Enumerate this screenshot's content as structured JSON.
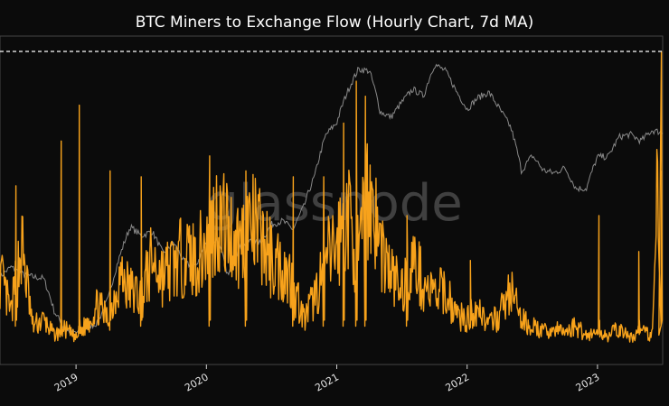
{
  "chart_data": {
    "type": "line",
    "title": "BTC Miners to Exchange Flow (Hourly Chart, 7d MA)",
    "watermark": "glassnode",
    "xlabel": "",
    "ylabel": "",
    "x_ticks": [
      "2019",
      "2020",
      "2021",
      "2022",
      "2023"
    ],
    "x_range": [
      "2018-06",
      "2023-07"
    ],
    "grid": false,
    "colors": {
      "background": "#0b0b0b",
      "flow": "#f7a21b",
      "price": "#8a8a8a",
      "reference_line": "#ffffff"
    },
    "series": [
      {
        "key": "price",
        "scale": "log",
        "x": [
          "2018-06",
          "2018-07",
          "2018-08",
          "2018-09",
          "2018-10",
          "2018-11",
          "2018-12",
          "2019-01",
          "2019-02",
          "2019-03",
          "2019-04",
          "2019-05",
          "2019-06",
          "2019-07",
          "2019-08",
          "2019-09",
          "2019-10",
          "2019-11",
          "2019-12",
          "2020-01",
          "2020-02",
          "2020-03",
          "2020-04",
          "2020-05",
          "2020-06",
          "2020-07",
          "2020-08",
          "2020-09",
          "2020-10",
          "2020-11",
          "2020-12",
          "2021-01",
          "2021-02",
          "2021-03",
          "2021-04",
          "2021-05",
          "2021-06",
          "2021-07",
          "2021-08",
          "2021-09",
          "2021-10",
          "2021-11",
          "2021-12",
          "2022-01",
          "2022-02",
          "2022-03",
          "2022-04",
          "2022-05",
          "2022-06",
          "2022-07",
          "2022-08",
          "2022-09",
          "2022-10",
          "2022-11",
          "2022-12",
          "2023-01",
          "2023-02",
          "2023-03",
          "2023-04",
          "2023-05",
          "2023-06",
          "2023-07"
        ],
        "values": [
          6500,
          7200,
          6700,
          6500,
          6400,
          4500,
          3700,
          3600,
          3800,
          4000,
          5200,
          8000,
          11000,
          10000,
          10500,
          8300,
          9300,
          7500,
          7200,
          9300,
          9600,
          6500,
          8800,
          9500,
          9300,
          11300,
          11700,
          10700,
          13700,
          19000,
          29000,
          33000,
          46000,
          58000,
          57000,
          37000,
          35000,
          41000,
          47000,
          43700,
          61000,
          57000,
          46000,
          38000,
          43000,
          45500,
          38000,
          31500,
          19800,
          23300,
          20000,
          19400,
          20500,
          16500,
          16500,
          23000,
          23100,
          28400,
          29200,
          27200,
          30400,
          29800
        ]
      },
      {
        "key": "flow",
        "x": [
          "2018-06",
          "2018-07",
          "2018-08",
          "2018-09",
          "2018-10",
          "2018-11",
          "2018-12",
          "2019-01",
          "2019-02",
          "2019-03",
          "2019-04",
          "2019-05",
          "2019-06",
          "2019-07",
          "2019-08",
          "2019-09",
          "2019-10",
          "2019-11",
          "2019-12",
          "2020-01",
          "2020-02",
          "2020-03",
          "2020-04",
          "2020-05",
          "2020-06",
          "2020-07",
          "2020-08",
          "2020-09",
          "2020-10",
          "2020-11",
          "2020-12",
          "2021-01",
          "2021-02",
          "2021-03",
          "2021-04",
          "2021-05",
          "2021-06",
          "2021-07",
          "2021-08",
          "2021-09",
          "2021-10",
          "2021-11",
          "2021-12",
          "2022-01",
          "2022-02",
          "2022-03",
          "2022-04",
          "2022-05",
          "2022-06",
          "2022-07",
          "2022-08",
          "2022-09",
          "2022-10",
          "2022-11",
          "2022-12",
          "2023-01",
          "2023-02",
          "2023-03",
          "2023-04",
          "2023-05",
          "2023-06",
          "2023-07"
        ],
        "values": [
          0.25,
          0.12,
          0.35,
          0.08,
          0.1,
          0.05,
          0.07,
          0.04,
          0.09,
          0.15,
          0.1,
          0.25,
          0.2,
          0.18,
          0.3,
          0.25,
          0.28,
          0.32,
          0.3,
          0.35,
          0.45,
          0.4,
          0.35,
          0.42,
          0.38,
          0.3,
          0.28,
          0.22,
          0.1,
          0.18,
          0.3,
          0.35,
          0.45,
          0.3,
          0.55,
          0.35,
          0.25,
          0.2,
          0.3,
          0.22,
          0.18,
          0.2,
          0.12,
          0.1,
          0.15,
          0.08,
          0.12,
          0.2,
          0.1,
          0.08,
          0.06,
          0.07,
          0.06,
          0.08,
          0.05,
          0.06,
          0.05,
          0.07,
          0.04,
          0.06,
          0.05,
          1.0
        ],
        "spikes": [
          {
            "x": "2018-07-15",
            "value": 0.55
          },
          {
            "x": "2018-11-20",
            "value": 0.7
          },
          {
            "x": "2019-01-10",
            "value": 0.82
          },
          {
            "x": "2019-04-05",
            "value": 0.6
          },
          {
            "x": "2019-07-01",
            "value": 0.58
          },
          {
            "x": "2020-01-10",
            "value": 0.65
          },
          {
            "x": "2020-04-20",
            "value": 0.6
          },
          {
            "x": "2020-09-01",
            "value": 0.58
          },
          {
            "x": "2020-11-25",
            "value": 0.58
          },
          {
            "x": "2021-01-20",
            "value": 0.76
          },
          {
            "x": "2021-02-25",
            "value": 0.9
          },
          {
            "x": "2021-03-20",
            "value": 0.85
          },
          {
            "x": "2021-07-15",
            "value": 0.45
          },
          {
            "x": "2022-01-10",
            "value": 0.3
          },
          {
            "x": "2023-01-05",
            "value": 0.45
          },
          {
            "x": "2023-04-25",
            "value": 0.33
          },
          {
            "x": "2023-06-28",
            "value": 0.6
          }
        ]
      }
    ],
    "reference_line": {
      "style": "dashed",
      "value": 1.0
    }
  }
}
